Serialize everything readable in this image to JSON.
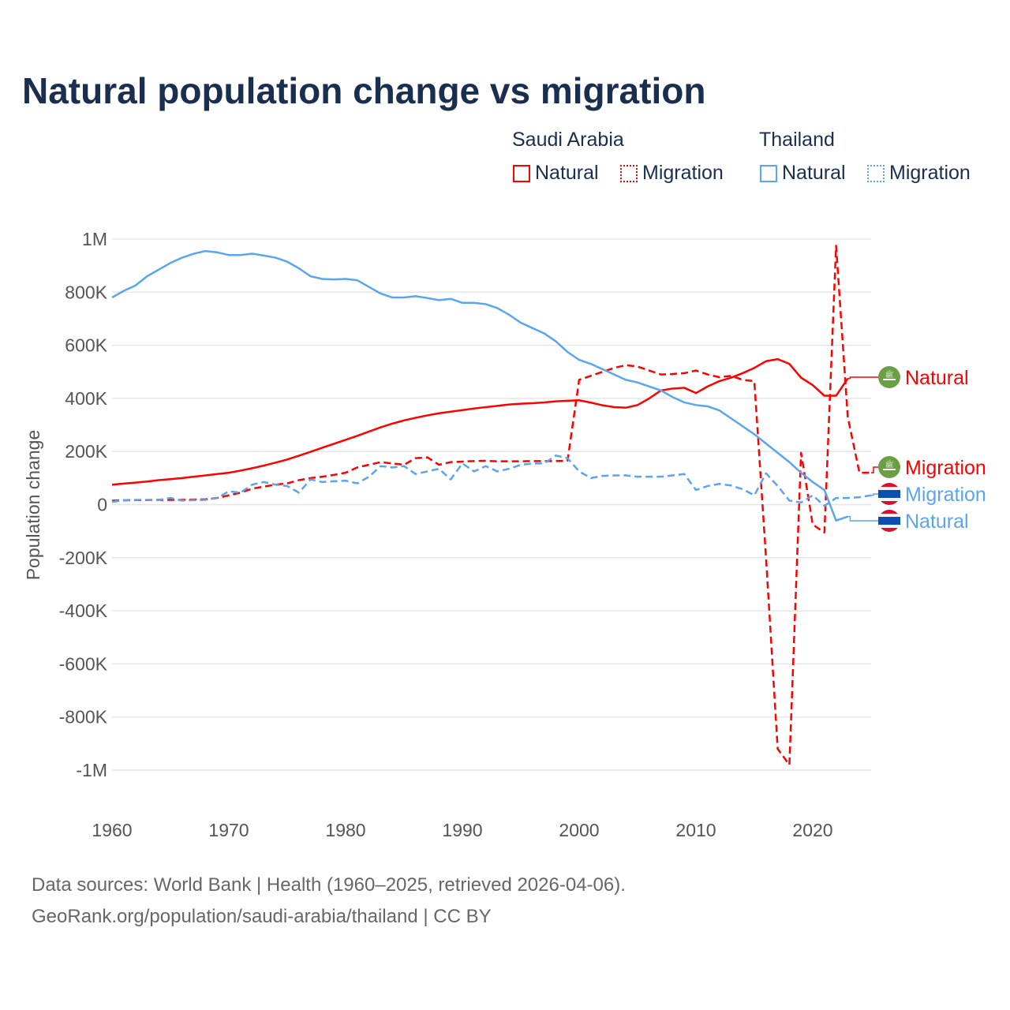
{
  "chart_data": {
    "type": "line",
    "title": "Natural population change vs migration",
    "xlabel": "",
    "ylabel": "Population change",
    "xlim": [
      1960,
      2025
    ],
    "ylim": [
      -1000000,
      1000000
    ],
    "xticks": [
      "1960",
      "1970",
      "1980",
      "1990",
      "2000",
      "2010",
      "2020"
    ],
    "yticks": [
      {
        "v": 1000000,
        "l": "1M"
      },
      {
        "v": 800000,
        "l": "800K"
      },
      {
        "v": 600000,
        "l": "600K"
      },
      {
        "v": 400000,
        "l": "400K"
      },
      {
        "v": 200000,
        "l": "200K"
      },
      {
        "v": 0,
        "l": "0"
      },
      {
        "v": -200000,
        "l": "-200K"
      },
      {
        "v": -400000,
        "l": "-400K"
      },
      {
        "v": -600000,
        "l": "-600K"
      },
      {
        "v": -800000,
        "l": "-800K"
      },
      {
        "v": -1000000,
        "l": "-1M"
      }
    ],
    "legend": {
      "groups": [
        {
          "name": "Saudi Arabia",
          "items": [
            "Natural",
            "Migration"
          ]
        },
        {
          "name": "Thailand",
          "items": [
            "Natural",
            "Migration"
          ]
        }
      ]
    },
    "series": [
      {
        "name": "Saudi Arabia Natural",
        "country": "Saudi Arabia",
        "label": "Natural",
        "color": "#ff0000",
        "dashed": false,
        "x0": 1960,
        "values": [
          75000,
          79000,
          83000,
          87000,
          92000,
          96000,
          100000,
          105000,
          110000,
          115000,
          120000,
          128000,
          137000,
          147000,
          158000,
          170000,
          184000,
          199000,
          214000,
          229000,
          244000,
          259000,
          275000,
          291000,
          305000,
          317000,
          327000,
          336000,
          344000,
          350000,
          356000,
          362000,
          367000,
          372000,
          377000,
          380000,
          382000,
          385000,
          389000,
          391000,
          393000,
          384000,
          374000,
          367000,
          365000,
          375000,
          400000,
          430000,
          437000,
          440000,
          420000,
          445000,
          465000,
          478000,
          495000,
          515000,
          540000,
          548000,
          530000,
          478000,
          450000,
          410000,
          410000,
          475000
        ]
      },
      {
        "name": "Saudi Arabia Migration",
        "country": "Saudi Arabia",
        "label": "Migration",
        "color": "#ff0000",
        "dashed": true,
        "x0": 1960,
        "values": [
          15000,
          16000,
          17000,
          17000,
          18000,
          18000,
          18000,
          19000,
          20000,
          25000,
          35000,
          45000,
          60000,
          68000,
          75000,
          80000,
          92000,
          100000,
          105000,
          112000,
          120000,
          140000,
          150000,
          160000,
          155000,
          150000,
          175000,
          178000,
          150000,
          160000,
          162000,
          164000,
          165000,
          163000,
          163000,
          163000,
          164000,
          164000,
          164000,
          165000,
          470000,
          485000,
          500000,
          515000,
          525000,
          520000,
          505000,
          490000,
          492000,
          495000,
          505000,
          490000,
          480000,
          485000,
          470000,
          465000,
          -200000,
          -920000,
          -980000,
          195000,
          -75000,
          -105000,
          975000,
          330000,
          120000,
          120000
        ]
      },
      {
        "name": "Thailand Natural",
        "country": "Thailand",
        "label": "Natural",
        "color": "#5aa5ef",
        "dashed": false,
        "x0": 1960,
        "values": [
          780000,
          805000,
          825000,
          860000,
          885000,
          910000,
          930000,
          945000,
          955000,
          950000,
          940000,
          940000,
          945000,
          938000,
          930000,
          915000,
          890000,
          860000,
          850000,
          848000,
          850000,
          845000,
          820000,
          795000,
          780000,
          780000,
          785000,
          778000,
          770000,
          775000,
          760000,
          760000,
          755000,
          740000,
          715000,
          685000,
          665000,
          645000,
          615000,
          575000,
          545000,
          530000,
          510000,
          490000,
          470000,
          460000,
          445000,
          430000,
          405000,
          385000,
          375000,
          370000,
          355000,
          325000,
          295000,
          265000,
          230000,
          195000,
          160000,
          120000,
          85000,
          55000,
          -60000,
          -45000
        ]
      },
      {
        "name": "Thailand Migration",
        "country": "Thailand",
        "label": "Migration",
        "color": "#5aa5ef",
        "dashed": true,
        "x0": 1960,
        "values": [
          10000,
          17000,
          18000,
          18000,
          18000,
          25000,
          15000,
          17000,
          18000,
          25000,
          50000,
          45000,
          75000,
          85000,
          75000,
          70000,
          45000,
          95000,
          85000,
          88000,
          90000,
          80000,
          105000,
          145000,
          140000,
          145000,
          115000,
          125000,
          135000,
          95000,
          155000,
          125000,
          145000,
          125000,
          135000,
          150000,
          155000,
          155000,
          185000,
          175000,
          125000,
          100000,
          108000,
          110000,
          110000,
          105000,
          105000,
          105000,
          110000,
          115000,
          55000,
          70000,
          78000,
          72000,
          58000,
          35000,
          118000,
          70000,
          15000,
          8000,
          35000,
          -5000,
          25000,
          25000,
          28000,
          35000
        ]
      }
    ],
    "end_labels": [
      {
        "text": "Natural",
        "country": "Saudi Arabia"
      },
      {
        "text": "Migration",
        "country": "Saudi Arabia"
      },
      {
        "text": "Migration",
        "country": "Thailand"
      },
      {
        "text": "Natural",
        "country": "Thailand"
      }
    ],
    "sources": "Data sources: World Bank | Health (1960–2025, retrieved 2026-04-06).",
    "credit": "GeoRank.org/population/saudi-arabia/thailand | CC BY"
  }
}
